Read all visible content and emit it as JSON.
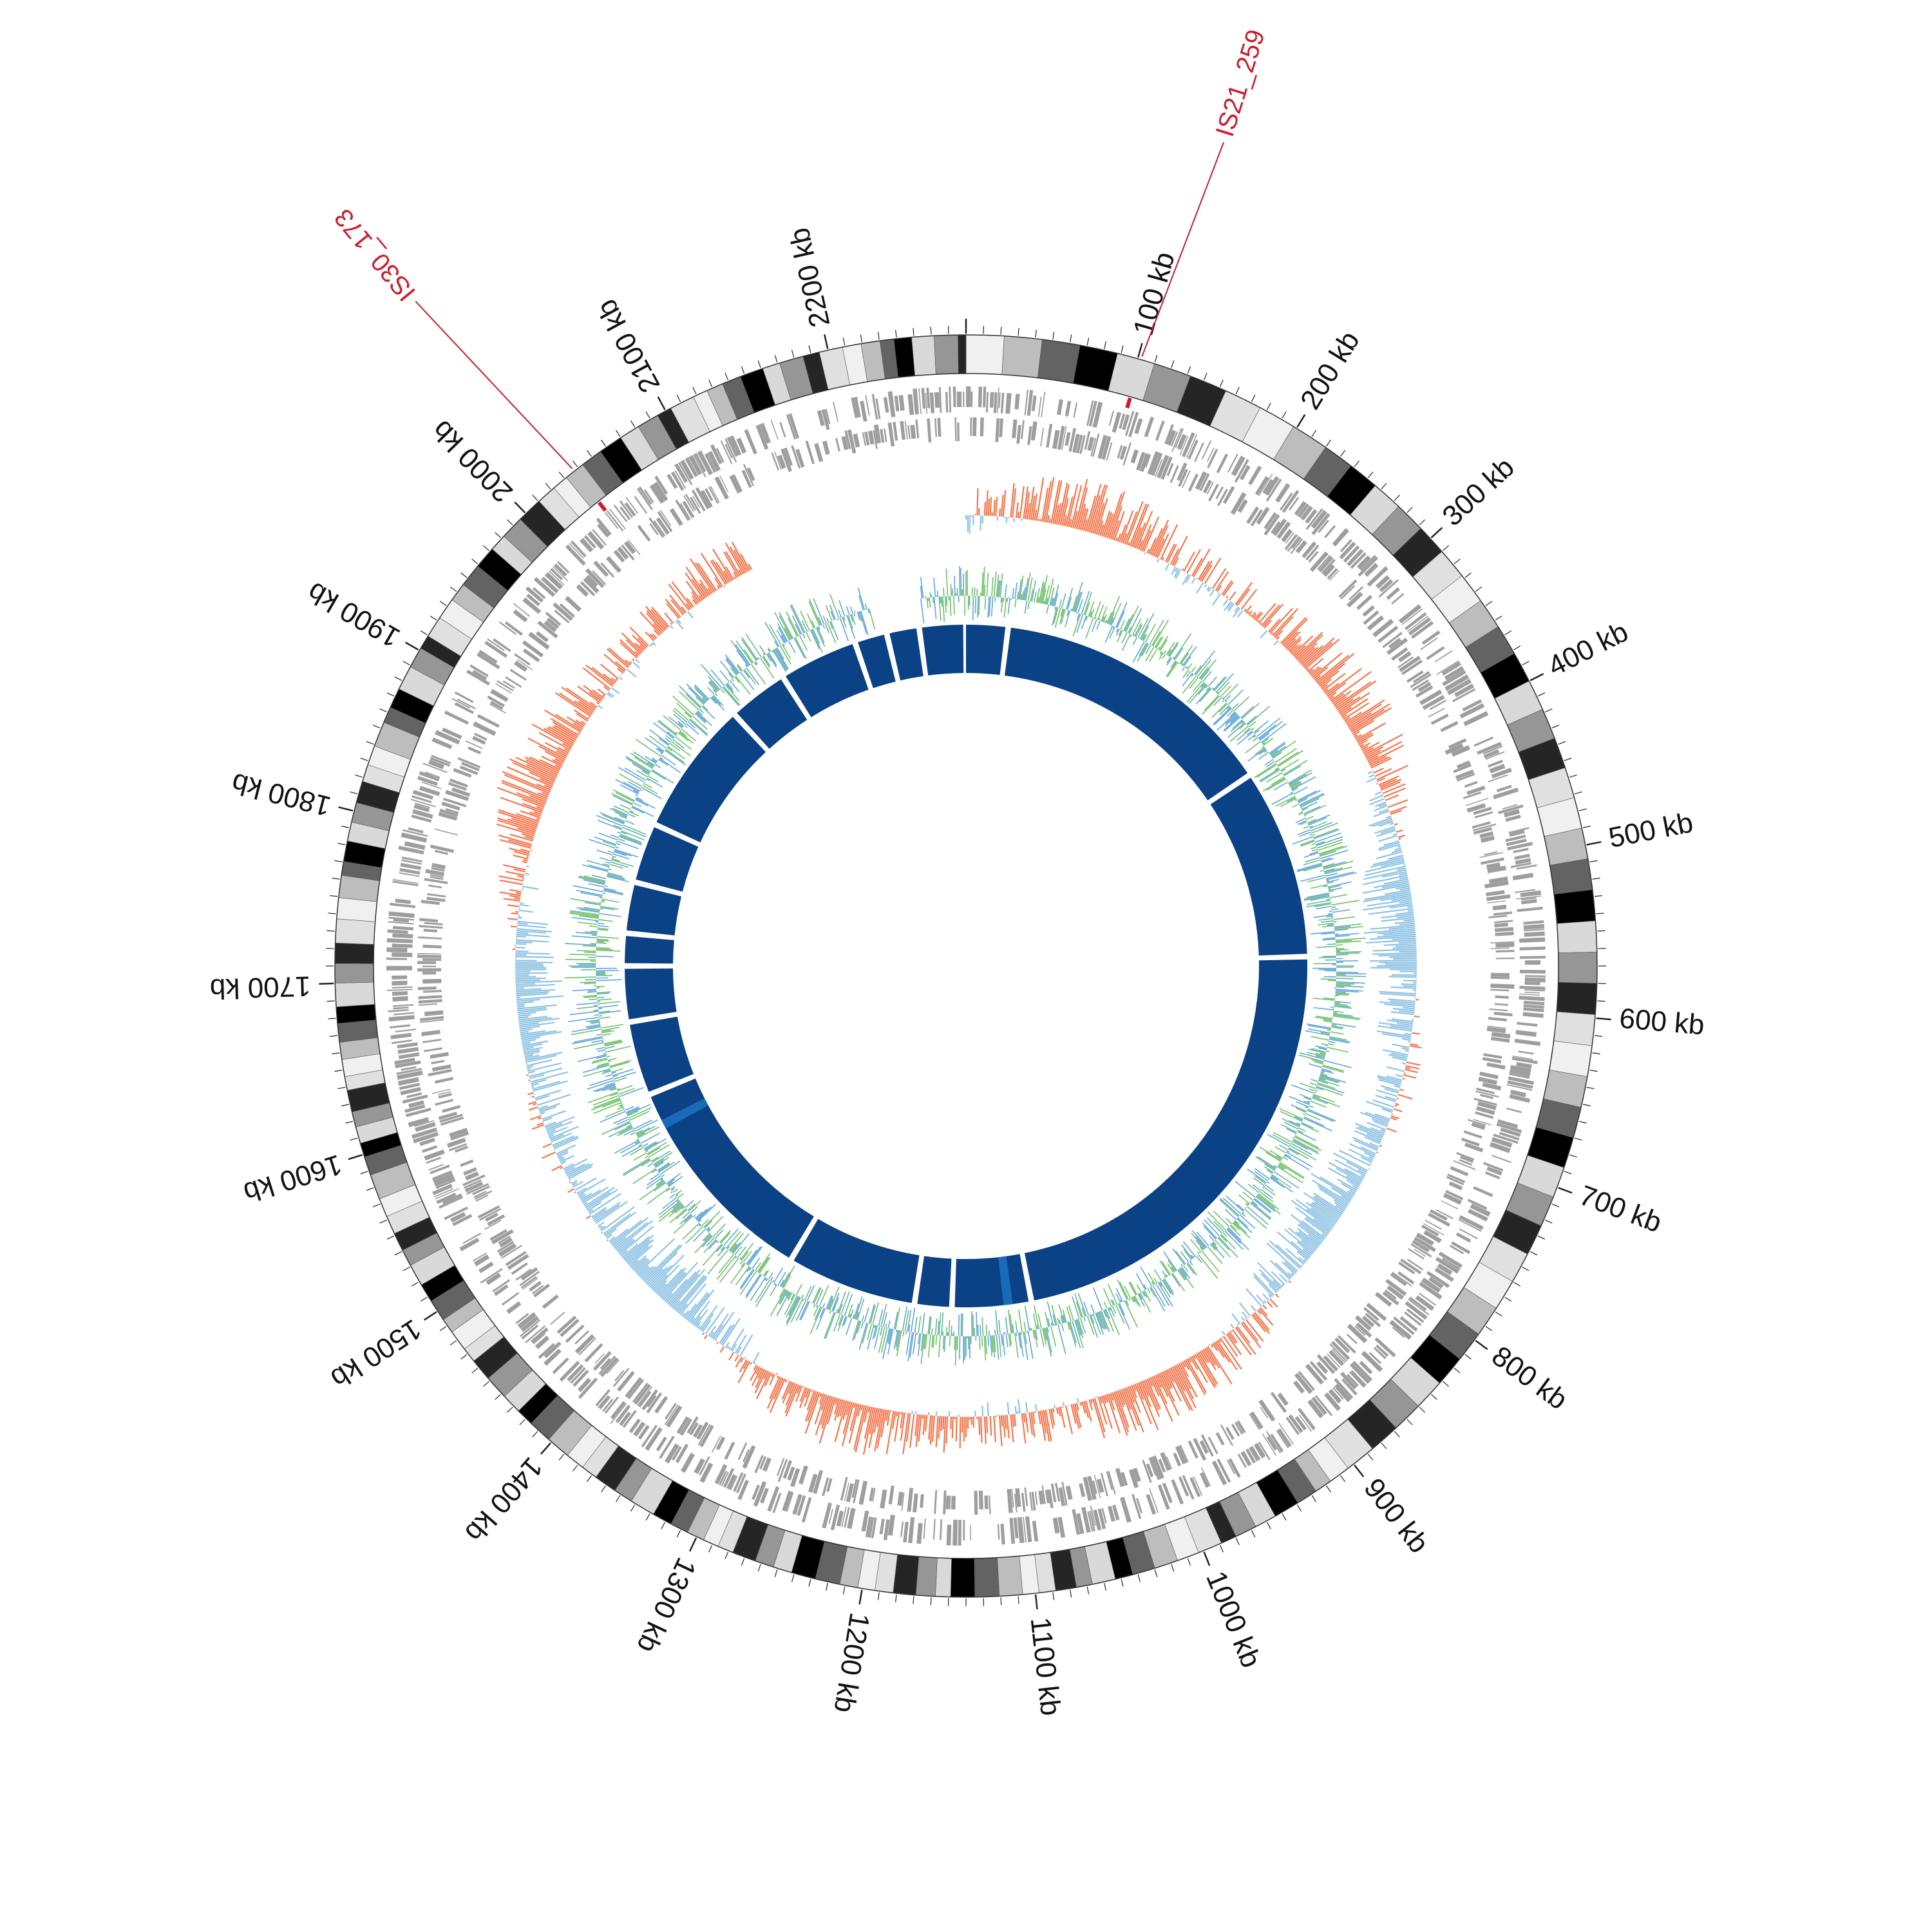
{
  "genome": {
    "length_kb": 2280,
    "tick_labels": [
      "100 kb",
      "200 kb",
      "300 kb",
      "400 kb",
      "500 kb",
      "600 kb",
      "700 kb",
      "800 kb",
      "900 kb",
      "1000 kb",
      "1100 kb",
      "1200 kb",
      "1300 kb",
      "1400 kb",
      "1500 kb",
      "1600 kb",
      "1700 kb",
      "1800 kb",
      "1900 kb",
      "2000 kb",
      "2100 kb",
      "2200 kb"
    ],
    "tick_positions_kb": [
      100,
      200,
      300,
      400,
      500,
      600,
      700,
      800,
      900,
      1000,
      1100,
      1200,
      1300,
      1400,
      1500,
      1600,
      1700,
      1800,
      1900,
      2000,
      2100,
      2200
    ]
  },
  "insertion_sequences": [
    {
      "label": "IS21_259",
      "position_kb": 102
    },
    {
      "label": "IS30_173",
      "position_kb": 2037
    }
  ],
  "colors": {
    "ideogram_band_palette": [
      "#f0f0f0",
      "#bdbdbd",
      "#636363",
      "#000000",
      "#d9d9d9",
      "#969696",
      "#252525",
      "#e0e0e0"
    ],
    "cds_gray": "#9e9e9e",
    "skew_positive": "#f4774f",
    "skew_negative": "#8fc3e3",
    "gc_green": "#6fbf6a",
    "gc_blue": "#5fa5d8",
    "synteny_blue": "#0b4185",
    "synteny_highlight": "#1b6ab8",
    "is_red": "#cc1c2c"
  },
  "tracks": [
    "ideogram",
    "cds_forward",
    "cds_reverse",
    "gc_skew",
    "gc_content",
    "synteny_blocks"
  ],
  "synteny_gaps_kb": [
    45,
    355,
    560,
    1070,
    1155,
    1195,
    1335,
    1570,
    1650,
    1710,
    1745,
    1800,
    1865,
    2010,
    2075,
    2160,
    2195,
    2230
  ],
  "skew_track_gap_kb": [
    2100,
    2280
  ]
}
